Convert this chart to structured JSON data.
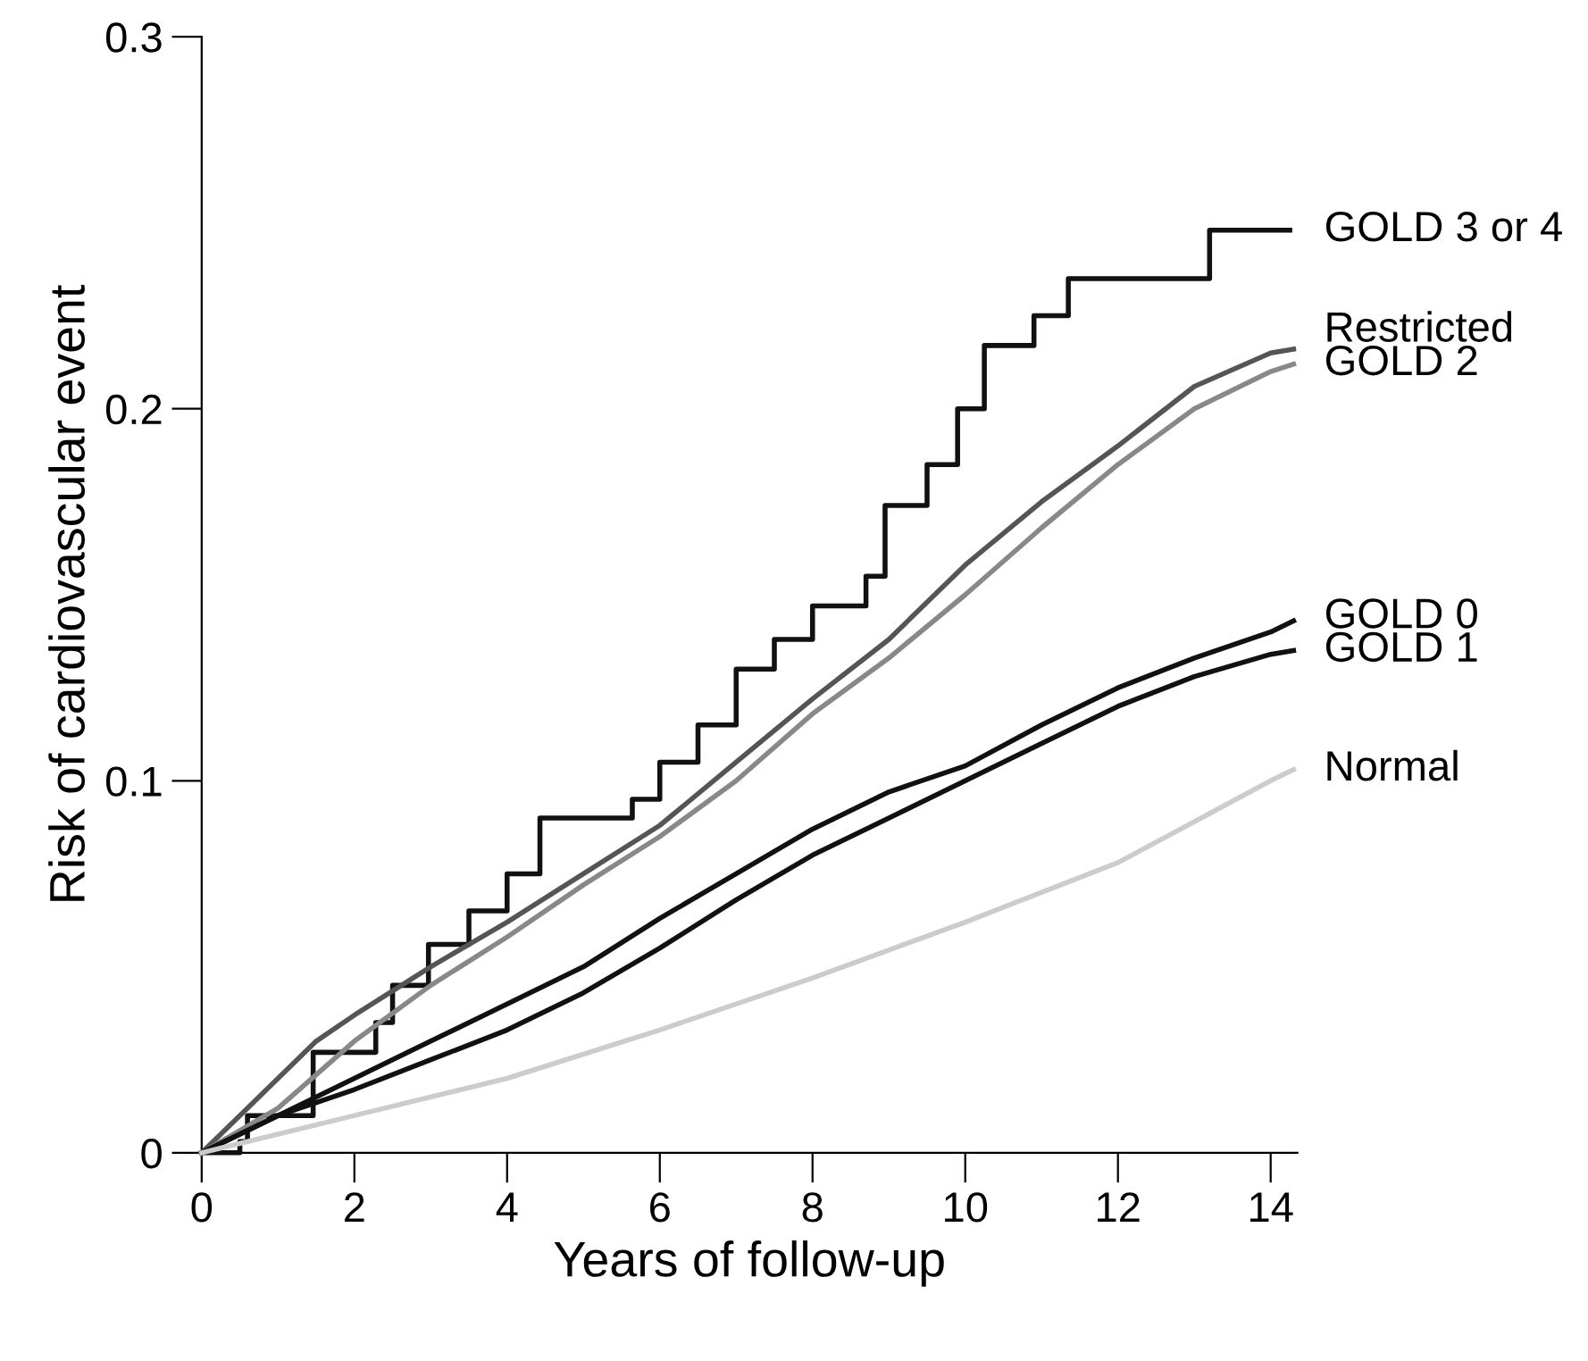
{
  "chart_data": {
    "type": "step",
    "xlabel": "Years of follow-up",
    "ylabel": "Risk of cardiovascular event",
    "xlim": [
      0,
      14.35
    ],
    "ylim": [
      0,
      0.3
    ],
    "xticks": [
      0,
      2,
      4,
      6,
      8,
      10,
      12,
      14
    ],
    "yticks": [
      0,
      0.1,
      0.2,
      0.3
    ],
    "grid": false,
    "legend": false,
    "series": [
      {
        "name": "GOLD 3 or 4",
        "color": "#111111",
        "x": [
          0,
          0.5,
          0.6,
          1.46,
          2.28,
          2.5,
          2.97,
          3.5,
          4.0,
          4.43,
          5.64,
          6.0,
          6.5,
          7.0,
          7.5,
          8.0,
          8.7,
          8.95,
          9.5,
          9.9,
          10.25,
          10.9,
          11.35,
          13.2,
          14.25
        ],
        "values": [
          0,
          0.003,
          0.01,
          0.027,
          0.035,
          0.045,
          0.056,
          0.065,
          0.075,
          0.09,
          0.095,
          0.105,
          0.115,
          0.13,
          0.138,
          0.147,
          0.155,
          0.174,
          0.185,
          0.2,
          0.217,
          0.225,
          0.235,
          0.248,
          0.248
        ]
      },
      {
        "name": "Restricted",
        "type": "line",
        "color": "#555555",
        "x": [
          0,
          0.5,
          1,
          1.5,
          2,
          3,
          4,
          5,
          6,
          7,
          8,
          9,
          10,
          11,
          12,
          13,
          14,
          14.3
        ],
        "values": [
          0,
          0.01,
          0.02,
          0.03,
          0.037,
          0.05,
          0.062,
          0.075,
          0.088,
          0.105,
          0.122,
          0.138,
          0.158,
          0.175,
          0.19,
          0.206,
          0.215,
          0.216
        ]
      },
      {
        "name": "GOLD 2",
        "type": "line",
        "color": "#888888",
        "x": [
          0,
          1,
          2,
          3,
          4,
          5,
          6,
          7,
          8,
          9,
          10,
          11,
          12,
          13,
          14,
          14.3
        ],
        "values": [
          0,
          0.012,
          0.03,
          0.045,
          0.058,
          0.072,
          0.085,
          0.1,
          0.118,
          0.133,
          0.15,
          0.168,
          0.185,
          0.2,
          0.21,
          0.212
        ]
      },
      {
        "name": "GOLD 0",
        "type": "line",
        "color": "#111111",
        "x": [
          0,
          1,
          2,
          3,
          4,
          5,
          6,
          7,
          8,
          9,
          10,
          11,
          12,
          13,
          14,
          14.3
        ],
        "values": [
          0,
          0.01,
          0.02,
          0.03,
          0.04,
          0.05,
          0.063,
          0.075,
          0.087,
          0.097,
          0.104,
          0.115,
          0.125,
          0.133,
          0.14,
          0.143
        ]
      },
      {
        "name": "GOLD 1",
        "type": "line",
        "color": "#111111",
        "x": [
          0,
          1,
          2,
          3,
          4,
          5,
          6,
          7,
          8,
          9,
          10,
          11,
          12,
          13,
          14,
          14.3
        ],
        "values": [
          0,
          0.01,
          0.017,
          0.025,
          0.033,
          0.043,
          0.055,
          0.068,
          0.08,
          0.09,
          0.1,
          0.11,
          0.12,
          0.128,
          0.134,
          0.135
        ]
      },
      {
        "name": "Normal",
        "type": "line",
        "color": "#cccccc",
        "x": [
          0,
          2,
          4,
          6,
          8,
          10,
          12,
          14,
          14.3
        ],
        "values": [
          0,
          0.01,
          0.02,
          0.033,
          0.047,
          0.062,
          0.078,
          0.1,
          0.103
        ]
      }
    ]
  }
}
